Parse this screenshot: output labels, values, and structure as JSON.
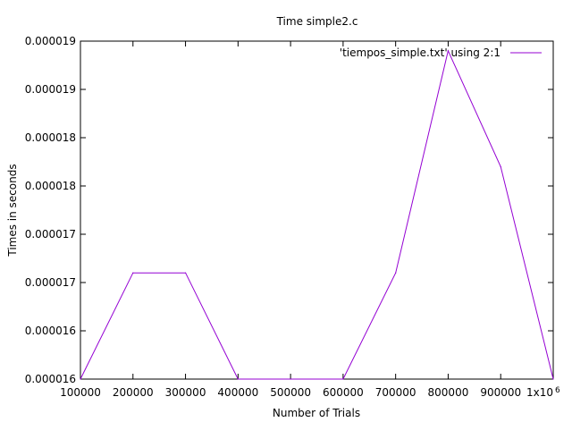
{
  "chart_data": {
    "type": "line",
    "title": "Time simple2.c",
    "xlabel": "Number of Trials",
    "ylabel": "Times in seconds",
    "x": [
      100000,
      200000,
      300000,
      400000,
      500000,
      600000,
      700000,
      800000,
      900000,
      1000000
    ],
    "series": [
      {
        "name": "'tiempos_simple.txt' using 2:1",
        "color": "#9400d3",
        "values": [
          1.56e-05,
          1.67e-05,
          1.67e-05,
          1.56e-05,
          1.56e-05,
          1.56e-05,
          1.67e-05,
          1.9e-05,
          1.78e-05,
          1.56e-05
        ]
      }
    ],
    "xlim": [
      100000,
      1000000
    ],
    "ylim": [
      1.56e-05,
      1.91e-05
    ],
    "x_ticks": [
      100000,
      200000,
      300000,
      400000,
      500000,
      600000,
      700000,
      800000,
      900000,
      1000000
    ],
    "x_tick_labels": [
      "100000",
      "200000",
      "300000",
      "400000",
      "500000",
      "600000",
      "700000",
      "800000",
      "900000",
      "1x10"
    ],
    "x_last_tick_exponent": "6",
    "y_ticks": [
      1.56e-05,
      1.61e-05,
      1.67e-05,
      1.72e-05,
      1.78e-05,
      1.83e-05,
      1.89e-05,
      1.94e-05
    ],
    "y_tick_labels": [
      "0.000016",
      "0.000016",
      "0.000017",
      "0.000017",
      "0.000018",
      "0.000018",
      "0.000019",
      "0.000019"
    ],
    "grid": false,
    "legend_position": "top-right"
  }
}
